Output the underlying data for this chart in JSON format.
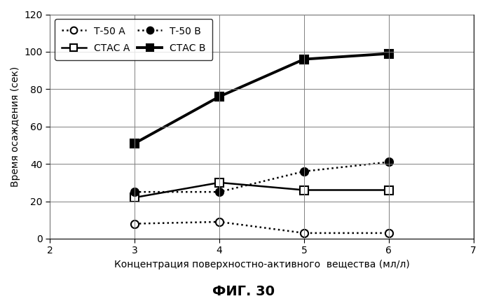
{
  "x": [
    3,
    4,
    5,
    6
  ],
  "t50_A": [
    8,
    9,
    3,
    3
  ],
  "t50_B": [
    25,
    25,
    36,
    41
  ],
  "ctas_A": [
    22,
    30,
    26,
    26
  ],
  "ctas_B": [
    51,
    76,
    96,
    99
  ],
  "xlabel": "Концентрация поверхностно-активного  вещества (мл/л)",
  "ylabel": "Время осаждения (сек)",
  "title": "ФИГ. 30",
  "xlim": [
    2,
    7
  ],
  "ylim": [
    0,
    120
  ],
  "yticks": [
    0,
    20,
    40,
    60,
    80,
    100,
    120
  ],
  "xticks": [
    2,
    3,
    4,
    5,
    6,
    7
  ],
  "legend_labels": [
    "Т-50 А",
    "СТАС А",
    "Т-50 В",
    "СТАС В"
  ]
}
